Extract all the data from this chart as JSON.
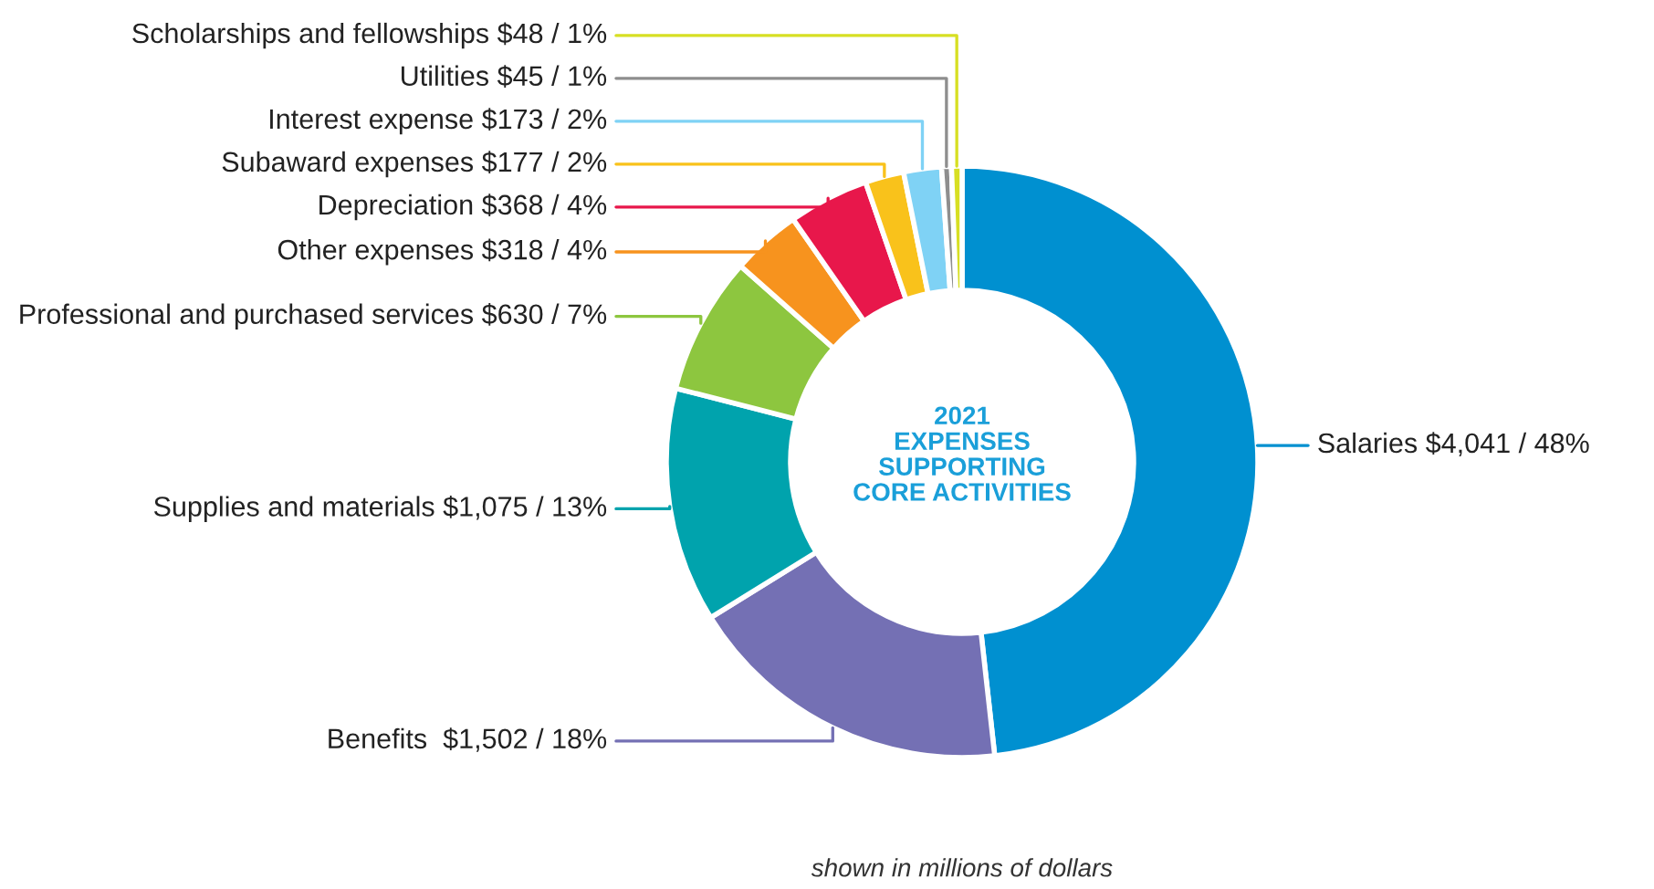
{
  "chart_data": {
    "type": "donut",
    "title": "2021\nEXPENSES\nSUPPORTING\nCORE ACTIVITIES",
    "categories": [
      "Salaries",
      "Benefits ",
      "Supplies and materials",
      "Professional and purchased services",
      "Other expenses",
      "Depreciation",
      "Subaward expenses",
      "Interest expense",
      "Utilities",
      "Scholarships and fellowships"
    ],
    "values": [
      4041,
      1502,
      1075,
      630,
      318,
      368,
      177,
      173,
      45,
      48
    ],
    "value_labels": [
      "$4,041 / 48%",
      "$1,502 / 18%",
      "$1,075 / 13%",
      "$630 / 7%",
      "$318 / 4%",
      "$368 / 4%",
      "$177 / 2%",
      "$173 / 2%",
      "$45 / 1%",
      "$48 / 1%"
    ],
    "colors": [
      "#0090d0",
      "#7470b4",
      "#00a3ad",
      "#8dc63f",
      "#f7931e",
      "#e8174b",
      "#f9c21b",
      "#7fd2f5",
      "#8e8e8e",
      "#d7df23"
    ],
    "annotations": [
      "shown in millions of dollars"
    ]
  }
}
